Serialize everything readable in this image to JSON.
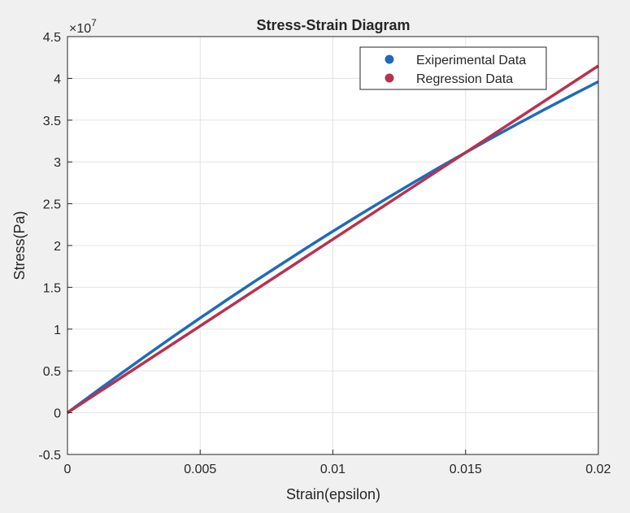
{
  "chart_data": {
    "type": "line",
    "title": "Stress-Strain Diagram",
    "xlabel": "Strain(epsilon)",
    "ylabel": "Stress(Pa)",
    "y_exponent_label": "×10",
    "y_exponent": "7",
    "xlim": [
      0,
      0.02
    ],
    "ylim": [
      -5000000,
      45000000
    ],
    "x_ticks": [
      0,
      0.005,
      0.01,
      0.015,
      0.02
    ],
    "x_tick_labels": [
      "0",
      "0.005",
      "0.01",
      "0.015",
      "0.02"
    ],
    "y_ticks": [
      -5000000,
      0,
      5000000,
      10000000,
      15000000,
      20000000,
      25000000,
      30000000,
      35000000,
      40000000,
      45000000
    ],
    "y_tick_labels": [
      "-0.5",
      "0",
      "0.5",
      "1",
      "1.5",
      "2",
      "2.5",
      "3",
      "3.5",
      "4",
      "4.5"
    ],
    "grid": true,
    "legend_position": "top-right",
    "series": [
      {
        "name": "Exiperimental Data",
        "color": "#1f6bb8",
        "x": [
          0,
          0.001,
          0.002,
          0.003,
          0.004,
          0.005,
          0.006,
          0.007,
          0.008,
          0.009,
          0.01,
          0.011,
          0.012,
          0.013,
          0.014,
          0.015,
          0.016,
          0.017,
          0.018,
          0.019,
          0.02
        ],
        "y": [
          0,
          2340000,
          4640000,
          6910000,
          9140000,
          11330000,
          13480000,
          15590000,
          17660000,
          19700000,
          21700000,
          23660000,
          25580000,
          27470000,
          29320000,
          31130000,
          32900000,
          34630000,
          36320000,
          37980000,
          39600000
        ]
      },
      {
        "name": "Regression Data",
        "color": "#b8324f",
        "x": [
          0,
          0.02
        ],
        "y": [
          0,
          41500000
        ]
      }
    ]
  }
}
